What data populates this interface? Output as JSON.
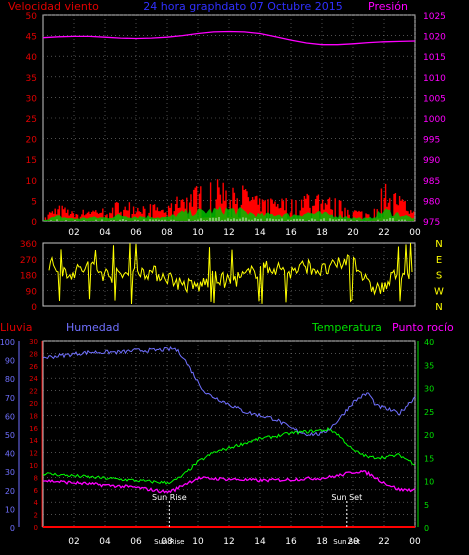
{
  "chart_data": [
    {
      "id": "wind_pressure",
      "type": "line",
      "title": "24 hora graphdato  07 Octubre 2015",
      "ylabel_left": "Velocidad viento",
      "ylabel_right": "Presión",
      "left_ticks": [
        "0",
        "5",
        "10",
        "15",
        "20",
        "25",
        "30",
        "35",
        "40",
        "45",
        "50"
      ],
      "right_ticks": [
        "975",
        "980",
        "985",
        "990",
        "995",
        "1000",
        "1005",
        "1010",
        "1015",
        "1020",
        "1025"
      ],
      "ylim_left": [
        0,
        50
      ],
      "ylim_right": [
        975,
        1025
      ],
      "x_ticks": [
        "02",
        "04",
        "06",
        "08",
        "10",
        "12",
        "14",
        "16",
        "18",
        "20",
        "22",
        "00"
      ],
      "xlim": [
        0,
        24
      ],
      "grid": true,
      "colors": {
        "pressure": "#ff00ff",
        "gust": "#ff0000",
        "wind": "#00c000",
        "wind_light": "#ffffff"
      },
      "pressure_series": {
        "x": [
          0,
          1,
          2,
          3,
          4,
          5,
          6,
          7,
          8,
          9,
          10,
          11,
          12,
          13,
          14,
          15,
          16,
          17,
          18,
          19,
          20,
          21,
          22,
          23,
          24
        ],
        "y": [
          1019.5,
          1019.7,
          1019.8,
          1019.8,
          1019.6,
          1019.4,
          1019.3,
          1019.4,
          1019.6,
          1020,
          1020.5,
          1020.9,
          1021,
          1020.9,
          1020.5,
          1019.7,
          1018.9,
          1018.2,
          1017.8,
          1017.8,
          1018,
          1018.3,
          1018.5,
          1018.6,
          1018.7
        ]
      },
      "gust_envelope": {
        "x": [
          0,
          1,
          2,
          3,
          4,
          5,
          6,
          7,
          8,
          9,
          10,
          11,
          12,
          13,
          14,
          15,
          16,
          17,
          18,
          19,
          20,
          21,
          22,
          23,
          24
        ],
        "y": [
          1,
          4,
          2,
          3,
          3,
          5,
          4,
          4,
          3,
          7,
          8,
          9,
          10,
          8,
          5,
          6,
          5,
          7,
          6,
          5,
          3,
          2,
          9,
          6,
          2
        ]
      }
    },
    {
      "id": "wind_direction",
      "type": "line",
      "left_ticks": [
        "0",
        "90",
        "180",
        "270",
        "360"
      ],
      "right_labels": [
        "N",
        "W",
        "S",
        "E",
        "N"
      ],
      "ylim": [
        0,
        360
      ],
      "xlim": [
        0,
        24
      ],
      "color": "#ffff00",
      "direction_anchors": {
        "x": [
          0.3,
          1,
          2,
          3,
          4,
          5,
          6,
          7,
          8,
          9,
          10,
          11,
          12,
          13,
          14,
          15,
          16,
          17,
          18,
          19,
          20,
          21,
          22,
          23,
          23.8
        ],
        "y": [
          250,
          210,
          190,
          230,
          180,
          170,
          210,
          190,
          170,
          120,
          110,
          160,
          140,
          170,
          210,
          220,
          190,
          230,
          200,
          230,
          280,
          110,
          100,
          210,
          150
        ]
      }
    },
    {
      "id": "temp_hum_rain",
      "type": "line",
      "labels": {
        "rain": "Lluvia",
        "humidity": "Humedad",
        "temperature": "Temperatura",
        "dewpoint": "Punto rocío"
      },
      "hum_ticks": [
        "0",
        "10",
        "20",
        "30",
        "40",
        "50",
        "60",
        "70",
        "80",
        "90",
        "100"
      ],
      "rain_ticks": [
        "0",
        "2",
        "4",
        "6",
        "8",
        "10",
        "12",
        "14",
        "16",
        "18",
        "20",
        "22",
        "24",
        "26",
        "28",
        "30"
      ],
      "temp_ticks": [
        "0",
        "5",
        "10",
        "15",
        "20",
        "25",
        "30",
        "35",
        "40"
      ],
      "ylim_humidity": [
        0,
        100
      ],
      "ylim_rain": [
        0,
        30
      ],
      "ylim_temp": [
        0,
        40
      ],
      "x_ticks": [
        "02",
        "04",
        "06",
        "08",
        "10",
        "12",
        "14",
        "16",
        "18",
        "20",
        "22",
        "00"
      ],
      "xlim": [
        0,
        24
      ],
      "colors": {
        "humidity": "#7070ff",
        "temperature": "#00ff00",
        "dewpoint": "#ff00ff",
        "rain": "#ff0000",
        "sun": "#ffffff"
      },
      "humidity_series": {
        "x": [
          0,
          1,
          2,
          3,
          4,
          5,
          6,
          7,
          8,
          8.5,
          9,
          9.5,
          10,
          10.5,
          11,
          12,
          13,
          14,
          15,
          16,
          17,
          18,
          18.5,
          19,
          20,
          20.5,
          21,
          21.5,
          22,
          23,
          24
        ],
        "y": [
          91,
          92,
          93,
          94,
          94,
          94,
          95,
          95,
          95.5,
          96,
          92,
          85,
          78,
          72,
          70,
          66,
          62,
          60,
          58,
          53,
          50,
          50,
          53,
          57,
          67,
          70,
          72,
          65,
          64,
          61,
          70
        ]
      },
      "temperature_series": {
        "x": [
          0,
          2,
          4,
          6,
          8,
          8.5,
          9,
          10,
          11,
          12,
          13,
          14,
          15,
          16,
          17,
          18,
          18.5,
          19,
          20,
          21,
          22,
          23,
          24
        ],
        "y": [
          11.5,
          11,
          10.5,
          10,
          9.5,
          10,
          11,
          14,
          16,
          17,
          18,
          19,
          19.5,
          20.2,
          20.5,
          20.8,
          21,
          20,
          16.5,
          15,
          15,
          15.5,
          13.5
        ]
      },
      "dewpoint_series": {
        "x": [
          0,
          2,
          4,
          6,
          8,
          8.5,
          9,
          10,
          12,
          14,
          16,
          17,
          18,
          19,
          20,
          20.5,
          21,
          22,
          23,
          24
        ],
        "y": [
          10,
          9.5,
          9,
          8.5,
          7.5,
          8,
          9,
          10.5,
          10.3,
          10,
          10.2,
          10.4,
          10.5,
          11,
          11.8,
          12,
          11.5,
          9.5,
          8,
          8
        ]
      },
      "rain_series": {
        "x": [
          0,
          24
        ],
        "y": [
          0,
          0
        ]
      },
      "sun_events": [
        {
          "label": "Sun Rise",
          "x": 8.15
        },
        {
          "label": "Sun Set",
          "x": 19.6
        }
      ],
      "sun_axis_labels": [
        "Sun Rise",
        "Sun Set"
      ]
    }
  ]
}
